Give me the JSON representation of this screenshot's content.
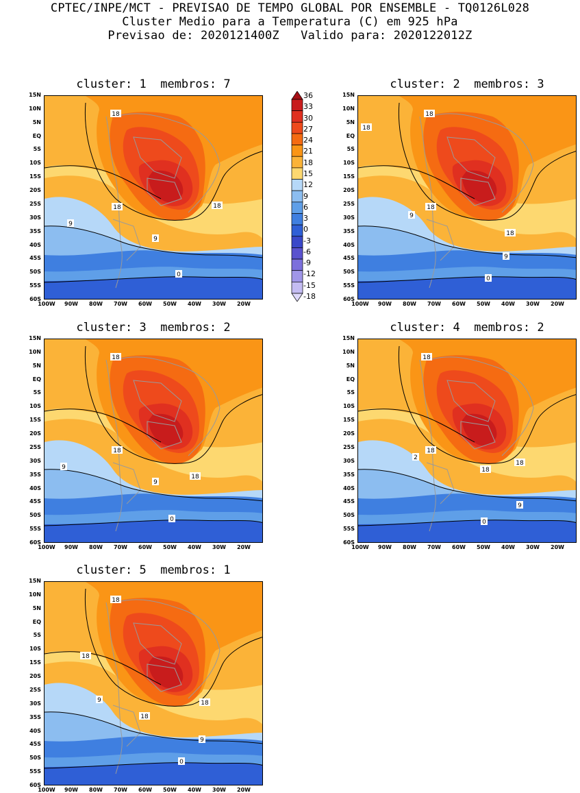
{
  "header": {
    "line1": "CPTEC/INPE/MCT - PREVISAO DE TEMPO GLOBAL POR ENSEMBLE - TQ0126L028",
    "line2": "Cluster Medio para a Temperatura (C) em 925 hPa",
    "line3": "Previsao de: 2020121400Z   Valido para: 2020122012Z"
  },
  "panels": [
    {
      "title": "cluster: 1  membros: 7",
      "contour_labels": [
        "18",
        "18",
        "18",
        "9",
        "9",
        "0"
      ]
    },
    {
      "title": "cluster: 2  membros: 3",
      "contour_labels": [
        "18",
        "18",
        "18",
        "18",
        "9",
        "9",
        "0"
      ]
    },
    {
      "title": "cluster: 3  membros: 2",
      "contour_labels": [
        "18",
        "18",
        "18",
        "9",
        "9",
        "0"
      ]
    },
    {
      "title": "cluster: 4  membros: 2",
      "contour_labels": [
        "18",
        "18",
        "18",
        "18",
        "2",
        "9",
        "0"
      ]
    },
    {
      "title": "cluster: 5  membros: 1",
      "contour_labels": [
        "18",
        "18",
        "18",
        "18",
        "9",
        "9",
        "0"
      ]
    }
  ],
  "axes": {
    "lat_ticks": [
      "15N",
      "10N",
      "5N",
      "EQ",
      "5S",
      "10S",
      "15S",
      "20S",
      "25S",
      "30S",
      "35S",
      "40S",
      "45S",
      "50S",
      "55S",
      "60S"
    ],
    "lon_ticks": [
      "100W",
      "90W",
      "80W",
      "70W",
      "60W",
      "50W",
      "40W",
      "30W",
      "20W"
    ]
  },
  "colorbar": {
    "labels": [
      "36",
      "33",
      "30",
      "27",
      "24",
      "21",
      "18",
      "15",
      "12",
      "9",
      "6",
      "3",
      "0",
      "-3",
      "-6",
      "-9",
      "-12",
      "-15",
      "-18"
    ],
    "colors": [
      "#a50f15",
      "#c81c1c",
      "#e03020",
      "#ee4a1c",
      "#f56b12",
      "#fa9516",
      "#fbb338",
      "#fdd870",
      "#b6d8f8",
      "#8cbdf0",
      "#5f9fe8",
      "#3f7fe0",
      "#2f5fd6",
      "#3a48c9",
      "#5a52cf",
      "#7c70dc",
      "#a096e8",
      "#c4bcf2",
      "#ddd8fa"
    ]
  }
}
